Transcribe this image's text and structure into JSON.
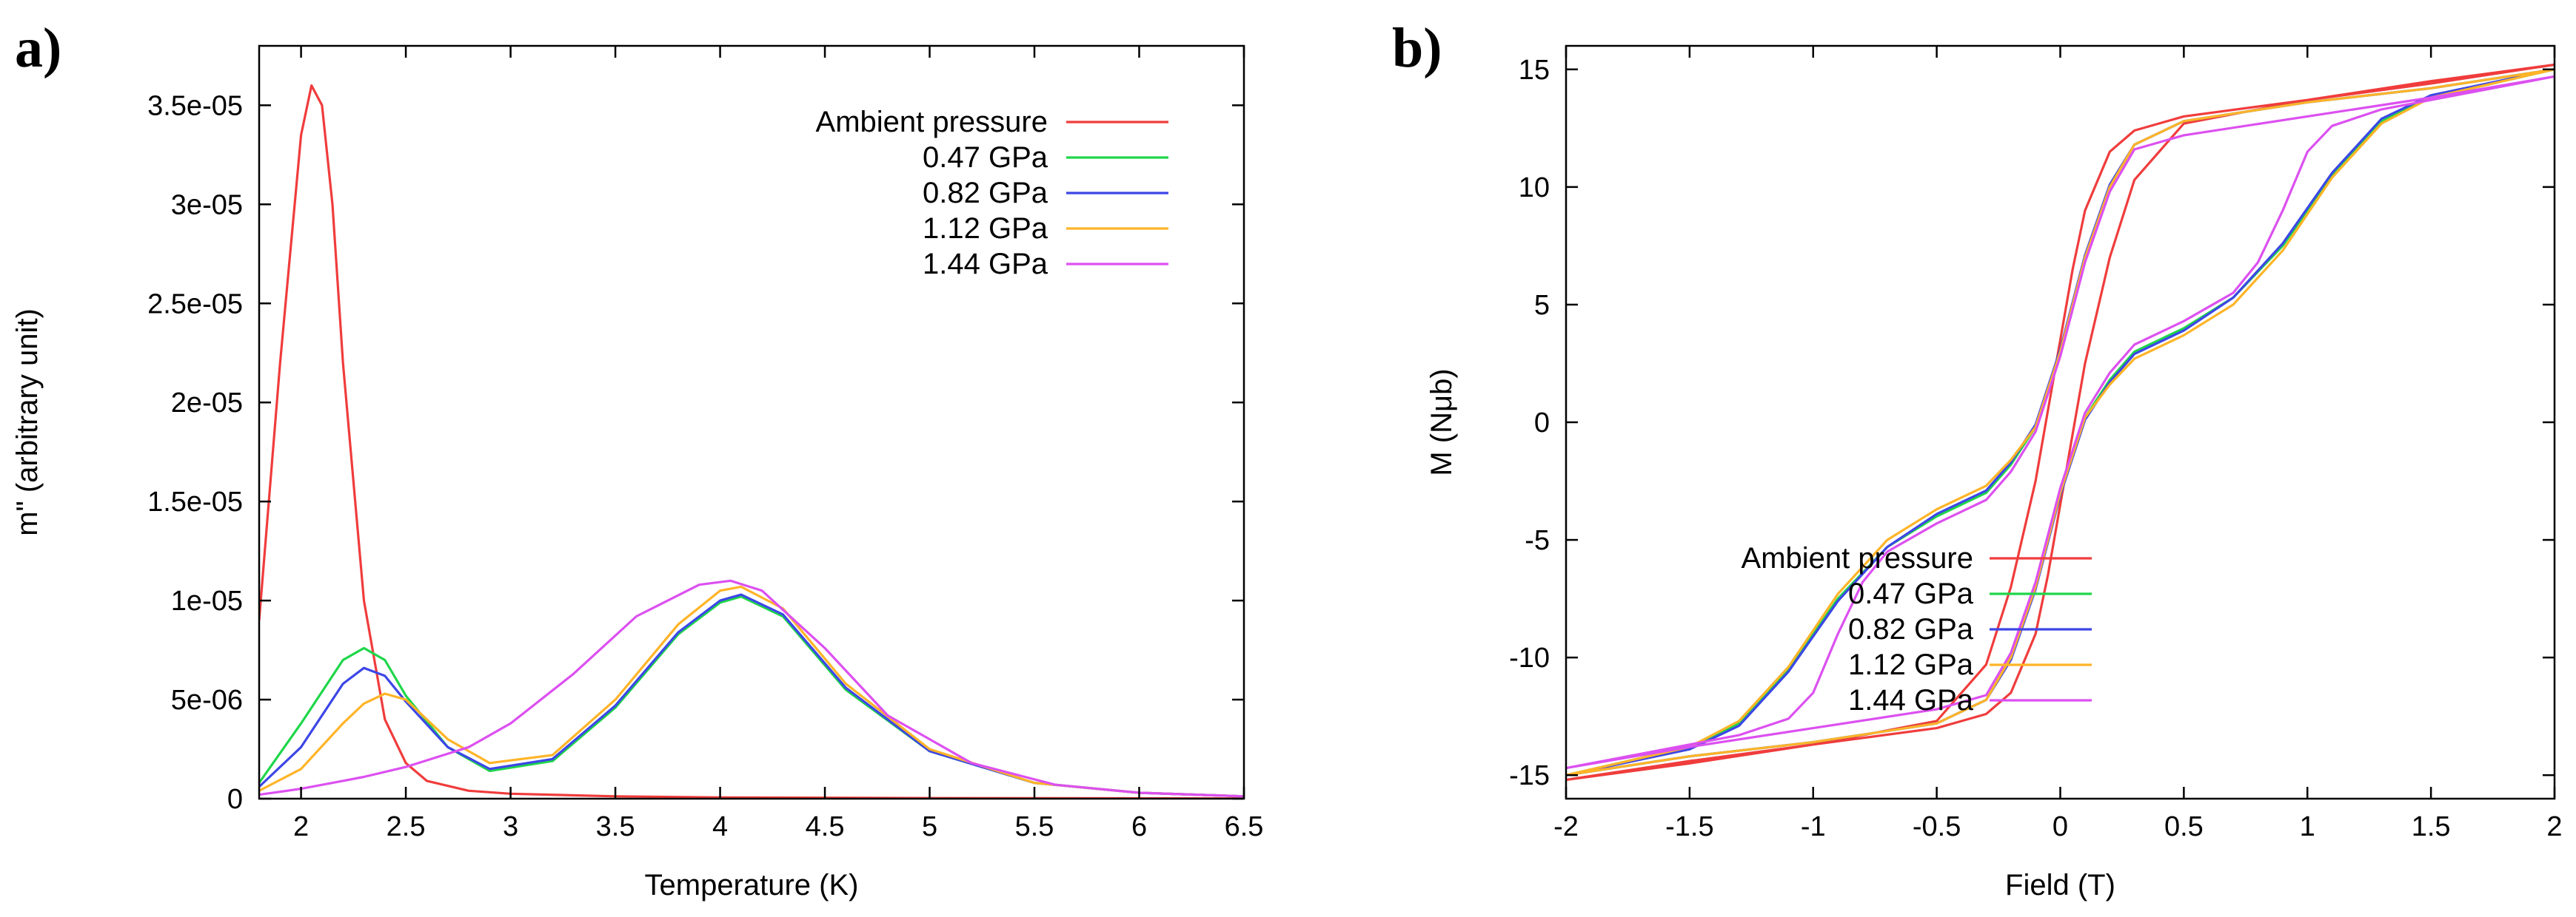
{
  "chart_data": [
    {
      "panel": "a)",
      "type": "line",
      "title": "",
      "xlabel": "Temperature (K)",
      "ylabel": "m\" (arbitrary unit)",
      "xlim": [
        1.8,
        6.5
      ],
      "ylim": [
        0,
        3.8e-05
      ],
      "xticks": [
        2,
        2.5,
        3,
        3.5,
        4,
        4.5,
        5,
        5.5,
        6,
        6.5
      ],
      "xtick_labels": [
        "2",
        "2.5",
        "3",
        "3.5",
        "4",
        "4.5",
        "5",
        "5.5",
        "6",
        "6.5"
      ],
      "yticks": [
        0,
        5e-06,
        1e-05,
        1.5e-05,
        2e-05,
        2.5e-05,
        3e-05,
        3.5e-05
      ],
      "ytick_labels": [
        "0",
        "5e-06",
        "1e-05",
        "1.5e-05",
        "2e-05",
        "2.5e-05",
        "3e-05",
        "3.5e-05"
      ],
      "legend_position": "top-right",
      "series": [
        {
          "name": "Ambient pressure",
          "color": "#f03c3c",
          "x": [
            1.8,
            1.9,
            2.0,
            2.05,
            2.1,
            2.15,
            2.2,
            2.3,
            2.4,
            2.5,
            2.6,
            2.8,
            3.0,
            3.5,
            4.0,
            5.0,
            6.5
          ],
          "y": [
            9e-06,
            2.2e-05,
            3.35e-05,
            3.6e-05,
            3.5e-05,
            3e-05,
            2.2e-05,
            1e-05,
            4e-06,
            1.8e-06,
            9e-07,
            4e-07,
            2.5e-07,
            1.2e-07,
            6e-08,
            3e-08,
            1e-08
          ]
        },
        {
          "name": "0.47 GPa",
          "color": "#1fd64a",
          "x": [
            1.8,
            2.0,
            2.2,
            2.3,
            2.4,
            2.5,
            2.7,
            2.9,
            3.2,
            3.5,
            3.8,
            4.0,
            4.1,
            4.3,
            4.6,
            5.0,
            5.5,
            6.0,
            6.5
          ],
          "y": [
            8e-07,
            3.8e-06,
            7e-06,
            7.6e-06,
            7e-06,
            5.2e-06,
            2.6e-06,
            1.4e-06,
            1.9e-06,
            4.6e-06,
            8.3e-06,
            9.9e-06,
            1.02e-05,
            9.2e-06,
            5.5e-06,
            2.4e-06,
            8e-07,
            3e-07,
            1.2e-07
          ]
        },
        {
          "name": "0.82 GPa",
          "color": "#3c46e6",
          "x": [
            1.8,
            2.0,
            2.2,
            2.3,
            2.4,
            2.5,
            2.7,
            2.9,
            3.2,
            3.5,
            3.8,
            4.0,
            4.1,
            4.3,
            4.6,
            5.0,
            5.5,
            6.0,
            6.5
          ],
          "y": [
            6e-07,
            2.6e-06,
            5.8e-06,
            6.6e-06,
            6.2e-06,
            4.9e-06,
            2.6e-06,
            1.5e-06,
            2e-06,
            4.7e-06,
            8.4e-06,
            1e-05,
            1.03e-05,
            9.3e-06,
            5.6e-06,
            2.4e-06,
            8e-07,
            3e-07,
            1.2e-07
          ]
        },
        {
          "name": "1.12 GPa",
          "color": "#ffb428",
          "x": [
            1.8,
            2.0,
            2.2,
            2.3,
            2.4,
            2.5,
            2.7,
            2.9,
            3.2,
            3.5,
            3.8,
            4.0,
            4.1,
            4.3,
            4.6,
            5.0,
            5.5,
            6.0,
            6.5
          ],
          "y": [
            4e-07,
            1.5e-06,
            3.8e-06,
            4.8e-06,
            5.3e-06,
            5e-06,
            3e-06,
            1.8e-06,
            2.2e-06,
            5e-06,
            8.8e-06,
            1.05e-05,
            1.07e-05,
            9.6e-06,
            5.8e-06,
            2.5e-06,
            8e-07,
            3e-07,
            1.2e-07
          ]
        },
        {
          "name": "1.44 GPa",
          "color": "#dc50f0",
          "x": [
            1.8,
            2.0,
            2.2,
            2.3,
            2.5,
            2.8,
            3.0,
            3.3,
            3.6,
            3.9,
            4.05,
            4.2,
            4.5,
            4.8,
            5.2,
            5.6,
            6.0,
            6.5
          ],
          "y": [
            2e-07,
            5e-07,
            9e-07,
            1.1e-06,
            1.6e-06,
            2.6e-06,
            3.8e-06,
            6.3e-06,
            9.2e-06,
            1.08e-05,
            1.1e-05,
            1.05e-05,
            7.6e-06,
            4.2e-06,
            1.8e-06,
            7e-07,
            3e-07,
            1.2e-07
          ]
        }
      ]
    },
    {
      "panel": "b)",
      "type": "line",
      "title": "",
      "xlabel": "Field (T)",
      "ylabel": "M (Nμb)",
      "xlim": [
        -2,
        2
      ],
      "ylim": [
        -16,
        16
      ],
      "xticks": [
        -2,
        -1.5,
        -1,
        -0.5,
        0,
        0.5,
        1,
        1.5,
        2
      ],
      "xtick_labels": [
        "-2",
        "-1.5",
        "-1",
        "-0.5",
        "0",
        "0.5",
        "1",
        "1.5",
        "2"
      ],
      "yticks": [
        -15,
        -10,
        -5,
        0,
        5,
        10,
        15
      ],
      "ytick_labels": [
        "-15",
        "-10",
        "-5",
        "0",
        "5",
        "10",
        "15"
      ],
      "legend_position": "bottom-right",
      "series": [
        {
          "name": "Ambient pressure",
          "color": "#f03c3c",
          "x": [
            -2,
            -1.5,
            -1,
            -0.5,
            -0.3,
            -0.2,
            -0.1,
            -0.05,
            0,
            0.05,
            0.1,
            0.2,
            0.3,
            0.5,
            1,
            1.5,
            2,
            1.5,
            1,
            0.5,
            0.3,
            0.2,
            0.1,
            0.05,
            0,
            -0.05,
            -0.1,
            -0.2,
            -0.3,
            -0.5,
            -1,
            -1.5,
            -2
          ],
          "y": [
            -15.2,
            -14.5,
            -13.7,
            -13.0,
            -12.4,
            -11.5,
            -9.0,
            -6.5,
            -3.5,
            -0.5,
            2.5,
            7.0,
            10.3,
            12.7,
            13.7,
            14.4,
            15.2,
            14.5,
            13.7,
            13.0,
            12.4,
            11.5,
            9.0,
            6.5,
            3.5,
            0.5,
            -2.5,
            -7.0,
            -10.3,
            -12.7,
            -13.7,
            -14.4,
            -15.2
          ]
        },
        {
          "name": "0.47 GPa",
          "color": "#1fd64a",
          "x": [
            -2,
            -1.5,
            -1,
            -0.5,
            -0.3,
            -0.2,
            -0.1,
            0,
            0.1,
            0.2,
            0.3,
            0.5,
            0.7,
            0.9,
            1.1,
            1.3,
            1.5,
            2,
            1.5,
            1,
            0.5,
            0.3,
            0.2,
            0.1,
            0,
            -0.1,
            -0.2,
            -0.3,
            -0.5,
            -0.7,
            -0.9,
            -1.1,
            -1.3,
            -1.5,
            -2
          ],
          "y": [
            -15.0,
            -14.2,
            -13.6,
            -12.8,
            -11.8,
            -10.0,
            -7.0,
            -3.0,
            0.2,
            1.8,
            3.0,
            4.0,
            5.3,
            7.5,
            10.5,
            12.8,
            13.8,
            15.0,
            14.2,
            13.6,
            12.8,
            11.8,
            10.0,
            7.0,
            3.0,
            -0.2,
            -1.8,
            -3.0,
            -4.0,
            -5.3,
            -7.5,
            -10.5,
            -12.8,
            -13.8,
            -15.0
          ]
        },
        {
          "name": "0.82 GPa",
          "color": "#3c46e6",
          "x": [
            -2,
            -1.5,
            -1,
            -0.5,
            -0.3,
            -0.2,
            -0.1,
            0,
            0.1,
            0.2,
            0.3,
            0.5,
            0.7,
            0.9,
            1.1,
            1.3,
            1.5,
            2,
            1.5,
            1,
            0.5,
            0.3,
            0.2,
            0.1,
            0,
            -0.1,
            -0.2,
            -0.3,
            -0.5,
            -0.7,
            -0.9,
            -1.1,
            -1.3,
            -1.5,
            -2
          ],
          "y": [
            -15.0,
            -14.2,
            -13.6,
            -12.8,
            -11.8,
            -10.1,
            -7.1,
            -3.1,
            0.1,
            1.7,
            2.9,
            3.9,
            5.3,
            7.6,
            10.6,
            12.9,
            13.9,
            15.0,
            14.2,
            13.6,
            12.8,
            11.8,
            10.1,
            7.1,
            3.1,
            -0.1,
            -1.7,
            -2.9,
            -3.9,
            -5.3,
            -7.6,
            -10.6,
            -12.9,
            -13.9,
            -15.0
          ]
        },
        {
          "name": "1.12 GPa",
          "color": "#ffb428",
          "x": [
            -2,
            -1.5,
            -1,
            -0.5,
            -0.3,
            -0.2,
            -0.1,
            0,
            0.1,
            0.2,
            0.3,
            0.5,
            0.7,
            0.9,
            1.1,
            1.3,
            1.5,
            2,
            1.5,
            1,
            0.5,
            0.3,
            0.2,
            0.1,
            0,
            -0.1,
            -0.2,
            -0.3,
            -0.5,
            -0.7,
            -0.9,
            -1.1,
            -1.3,
            -1.5,
            -2
          ],
          "y": [
            -15.0,
            -14.2,
            -13.6,
            -12.8,
            -11.8,
            -10.0,
            -7.0,
            -3.0,
            0.2,
            1.6,
            2.7,
            3.7,
            5.0,
            7.3,
            10.4,
            12.7,
            13.8,
            15.0,
            14.2,
            13.6,
            12.8,
            11.8,
            10.0,
            7.0,
            3.0,
            -0.2,
            -1.6,
            -2.7,
            -3.7,
            -5.0,
            -7.3,
            -10.4,
            -12.7,
            -13.8,
            -15.0
          ]
        },
        {
          "name": "1.44 GPa",
          "color": "#dc50f0",
          "x": [
            -2,
            -1.5,
            -1,
            -0.5,
            -0.3,
            -0.2,
            -0.1,
            0,
            0.1,
            0.2,
            0.3,
            0.5,
            0.7,
            0.8,
            0.9,
            1.0,
            1.1,
            1.3,
            1.5,
            2,
            1.5,
            1,
            0.5,
            0.3,
            0.2,
            0.1,
            0,
            -0.1,
            -0.2,
            -0.3,
            -0.5,
            -0.7,
            -0.8,
            -0.9,
            -1.0,
            -1.1,
            -1.3,
            -1.5,
            -2
          ],
          "y": [
            -14.7,
            -13.8,
            -13.0,
            -12.2,
            -11.6,
            -9.8,
            -6.8,
            -2.8,
            0.4,
            2.1,
            3.3,
            4.3,
            5.5,
            6.8,
            9.0,
            11.5,
            12.6,
            13.3,
            13.7,
            14.7,
            13.8,
            13.0,
            12.2,
            11.6,
            9.8,
            6.8,
            2.8,
            -0.4,
            -2.1,
            -3.3,
            -4.3,
            -5.5,
            -6.8,
            -9.0,
            -11.5,
            -12.6,
            -13.3,
            -13.7,
            -14.7
          ]
        }
      ]
    }
  ]
}
